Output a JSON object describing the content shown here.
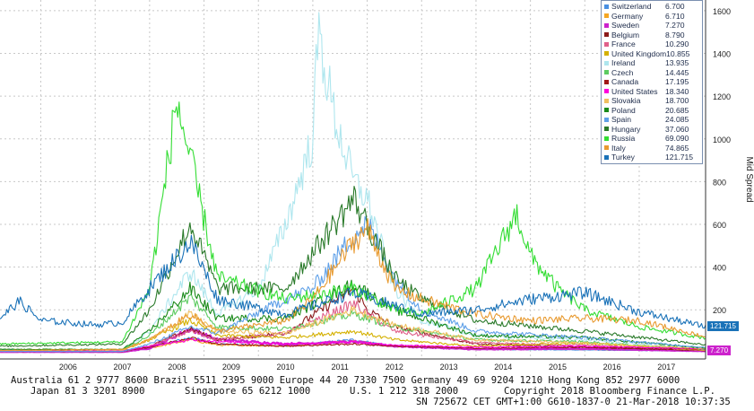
{
  "chart_data": {
    "type": "line",
    "ylabel": "Mid Spread",
    "ylim": [
      -30,
      1650
    ],
    "yticks": [
      200,
      400,
      600,
      800,
      1000,
      1200,
      1400,
      1600
    ],
    "x_years": [
      "2006",
      "2007",
      "2008",
      "2009",
      "2010",
      "2011",
      "2012",
      "2013",
      "2014",
      "2015",
      "2016",
      "2017"
    ],
    "x_range": [
      2005.25,
      2018.22
    ],
    "series": [
      {
        "name": "Switzerland",
        "last": "6.700",
        "color": "#4a90e2",
        "points": [
          [
            2005.25,
            12
          ],
          [
            2007.5,
            10
          ],
          [
            2008.0,
            25
          ],
          [
            2008.75,
            70
          ],
          [
            2009.25,
            40
          ],
          [
            2010.5,
            30
          ],
          [
            2011.75,
            60
          ],
          [
            2012.5,
            30
          ],
          [
            2014,
            15
          ],
          [
            2016,
            12
          ],
          [
            2018.2,
            7
          ]
        ]
      },
      {
        "name": "Germany",
        "last": "6.710",
        "color": "#f5a623",
        "points": [
          [
            2005.25,
            8
          ],
          [
            2007.5,
            7
          ],
          [
            2008.0,
            20
          ],
          [
            2008.75,
            60
          ],
          [
            2009.25,
            35
          ],
          [
            2010.5,
            30
          ],
          [
            2011.75,
            55
          ],
          [
            2012.5,
            30
          ],
          [
            2014,
            18
          ],
          [
            2016,
            15
          ],
          [
            2018.2,
            7
          ]
        ]
      },
      {
        "name": "Sweden",
        "last": "7.270",
        "color": "#cc22cc",
        "points": [
          [
            2005.25,
            3
          ],
          [
            2007.5,
            3
          ],
          [
            2008.0,
            20
          ],
          [
            2008.75,
            110
          ],
          [
            2009.25,
            60
          ],
          [
            2010.5,
            40
          ],
          [
            2011.75,
            50
          ],
          [
            2012.5,
            30
          ],
          [
            2014,
            15
          ],
          [
            2016,
            18
          ],
          [
            2018.2,
            7
          ]
        ]
      },
      {
        "name": "Belgium",
        "last": "8.790",
        "color": "#8b1a1a",
        "points": [
          [
            2005.25,
            5
          ],
          [
            2007.5,
            5
          ],
          [
            2008.0,
            30
          ],
          [
            2008.75,
            110
          ],
          [
            2009.25,
            60
          ],
          [
            2010.5,
            90
          ],
          [
            2011.75,
            300
          ],
          [
            2012.0,
            200
          ],
          [
            2012.5,
            120
          ],
          [
            2014,
            40
          ],
          [
            2016,
            25
          ],
          [
            2018.2,
            9
          ]
        ]
      },
      {
        "name": "France",
        "last": "10.290",
        "color": "#e0608a",
        "points": [
          [
            2005.25,
            6
          ],
          [
            2007.5,
            6
          ],
          [
            2008.0,
            30
          ],
          [
            2008.75,
            100
          ],
          [
            2009.25,
            60
          ],
          [
            2010.5,
            90
          ],
          [
            2011.75,
            230
          ],
          [
            2012.0,
            180
          ],
          [
            2012.5,
            100
          ],
          [
            2014,
            45
          ],
          [
            2016,
            35
          ],
          [
            2018.2,
            10
          ]
        ]
      },
      {
        "name": "United Kingdom",
        "last": "10.855",
        "color": "#d4b000",
        "points": [
          [
            2005.25,
            6
          ],
          [
            2007.5,
            10
          ],
          [
            2008.0,
            60
          ],
          [
            2008.75,
            150
          ],
          [
            2009.25,
            80
          ],
          [
            2010.5,
            70
          ],
          [
            2011.75,
            100
          ],
          [
            2012.5,
            60
          ],
          [
            2014,
            30
          ],
          [
            2016,
            45
          ],
          [
            2018.2,
            11
          ]
        ]
      },
      {
        "name": "Ireland",
        "last": "13.935",
        "color": "#aee6ee",
        "points": [
          [
            2005.25,
            5
          ],
          [
            2007.5,
            10
          ],
          [
            2008.0,
            100
          ],
          [
            2008.75,
            380
          ],
          [
            2009.25,
            180
          ],
          [
            2010.0,
            300
          ],
          [
            2010.5,
            600
          ],
          [
            2011.0,
            1000
          ],
          [
            2011.1,
            1500
          ],
          [
            2011.4,
            1100
          ],
          [
            2011.75,
            800
          ],
          [
            2012.0,
            720
          ],
          [
            2012.5,
            300
          ],
          [
            2013,
            150
          ],
          [
            2014,
            80
          ],
          [
            2016,
            60
          ],
          [
            2018.2,
            14
          ]
        ]
      },
      {
        "name": "Czech",
        "last": "14.445",
        "color": "#5ccb60",
        "points": [
          [
            2005.25,
            10
          ],
          [
            2007.5,
            12
          ],
          [
            2008.0,
            80
          ],
          [
            2008.75,
            260
          ],
          [
            2009.25,
            120
          ],
          [
            2010.5,
            110
          ],
          [
            2011.75,
            180
          ],
          [
            2012.5,
            120
          ],
          [
            2014,
            60
          ],
          [
            2016,
            50
          ],
          [
            2018.2,
            14
          ]
        ]
      },
      {
        "name": "Canada",
        "last": "17.195",
        "color": "#a01818",
        "points": [
          [
            2005.25,
            8
          ],
          [
            2007.5,
            8
          ],
          [
            2008.0,
            25
          ],
          [
            2008.75,
            70
          ],
          [
            2009.25,
            40
          ],
          [
            2010.5,
            30
          ],
          [
            2011.75,
            40
          ],
          [
            2012.5,
            30
          ],
          [
            2014,
            20
          ],
          [
            2016,
            25
          ],
          [
            2018.2,
            17
          ]
        ]
      },
      {
        "name": "United States",
        "last": "18.340",
        "color": "#ff00dd",
        "points": [
          [
            2005.25,
            5
          ],
          [
            2007.5,
            8
          ],
          [
            2008.0,
            30
          ],
          [
            2008.75,
            60
          ],
          [
            2009.25,
            50
          ],
          [
            2010.5,
            40
          ],
          [
            2011.75,
            50
          ],
          [
            2012.5,
            35
          ],
          [
            2014,
            25
          ],
          [
            2016,
            30
          ],
          [
            2018.2,
            18
          ]
        ]
      },
      {
        "name": "Slovakia",
        "last": "18.700",
        "color": "#f0c060",
        "points": [
          [
            2005.25,
            10
          ],
          [
            2007.5,
            12
          ],
          [
            2008.0,
            60
          ],
          [
            2008.75,
            180
          ],
          [
            2009.25,
            100
          ],
          [
            2010.5,
            90
          ],
          [
            2011.75,
            200
          ],
          [
            2012.5,
            130
          ],
          [
            2014,
            60
          ],
          [
            2016,
            45
          ],
          [
            2018.2,
            19
          ]
        ]
      },
      {
        "name": "Poland",
        "last": "20.685",
        "color": "#1a8a1a",
        "points": [
          [
            2005.25,
            15
          ],
          [
            2007.5,
            15
          ],
          [
            2008.0,
            100
          ],
          [
            2008.75,
            300
          ],
          [
            2009.25,
            160
          ],
          [
            2010.5,
            160
          ],
          [
            2011.75,
            320
          ],
          [
            2012.5,
            200
          ],
          [
            2014,
            80
          ],
          [
            2016,
            70
          ],
          [
            2018.2,
            21
          ]
        ]
      },
      {
        "name": "Spain",
        "last": "24.085",
        "color": "#5fa0e8",
        "points": [
          [
            2005.25,
            5
          ],
          [
            2007.5,
            5
          ],
          [
            2008.0,
            40
          ],
          [
            2008.75,
            120
          ],
          [
            2009.25,
            90
          ],
          [
            2010.5,
            250
          ],
          [
            2011.0,
            300
          ],
          [
            2011.75,
            550
          ],
          [
            2012.0,
            600
          ],
          [
            2012.5,
            350
          ],
          [
            2013,
            200
          ],
          [
            2014,
            100
          ],
          [
            2016,
            70
          ],
          [
            2018.2,
            24
          ]
        ]
      },
      {
        "name": "Hungary",
        "last": "37.060",
        "color": "#2a7a2a",
        "points": [
          [
            2005.25,
            30
          ],
          [
            2007.5,
            40
          ],
          [
            2008.0,
            200
          ],
          [
            2008.75,
            600
          ],
          [
            2009.25,
            300
          ],
          [
            2010.5,
            300
          ],
          [
            2011.75,
            720
          ],
          [
            2012.0,
            600
          ],
          [
            2012.5,
            350
          ],
          [
            2013,
            250
          ],
          [
            2014,
            150
          ],
          [
            2016,
            100
          ],
          [
            2018.2,
            37
          ]
        ]
      },
      {
        "name": "Russia",
        "last": "69.090",
        "color": "#33dd33",
        "points": [
          [
            2005.25,
            40
          ],
          [
            2007.5,
            50
          ],
          [
            2008.0,
            300
          ],
          [
            2008.5,
            1180
          ],
          [
            2008.75,
            900
          ],
          [
            2009.25,
            350
          ],
          [
            2010.5,
            250
          ],
          [
            2011.75,
            300
          ],
          [
            2012.5,
            200
          ],
          [
            2013,
            180
          ],
          [
            2014,
            300
          ],
          [
            2014.75,
            650
          ],
          [
            2015.0,
            450
          ],
          [
            2015.5,
            300
          ],
          [
            2016,
            200
          ],
          [
            2017,
            120
          ],
          [
            2018.2,
            69
          ]
        ]
      },
      {
        "name": "Italy",
        "last": "74.865",
        "color": "#e89a30",
        "points": [
          [
            2005.25,
            10
          ],
          [
            2007.5,
            15
          ],
          [
            2008.0,
            60
          ],
          [
            2008.75,
            180
          ],
          [
            2009.25,
            100
          ],
          [
            2010.5,
            150
          ],
          [
            2011.0,
            250
          ],
          [
            2011.75,
            520
          ],
          [
            2012.0,
            580
          ],
          [
            2012.5,
            300
          ],
          [
            2013,
            250
          ],
          [
            2014,
            180
          ],
          [
            2015,
            150
          ],
          [
            2016,
            160
          ],
          [
            2017,
            150
          ],
          [
            2018.2,
            75
          ]
        ]
      },
      {
        "name": "Turkey",
        "last": "121.715",
        "color": "#1a72b8",
        "points": [
          [
            2005.25,
            160
          ],
          [
            2005.6,
            240
          ],
          [
            2006.0,
            150
          ],
          [
            2007.0,
            130
          ],
          [
            2007.5,
            140
          ],
          [
            2008.0,
            300
          ],
          [
            2008.75,
            520
          ],
          [
            2009.25,
            250
          ],
          [
            2010.5,
            180
          ],
          [
            2011.75,
            280
          ],
          [
            2012.5,
            220
          ],
          [
            2013,
            180
          ],
          [
            2014,
            200
          ],
          [
            2015,
            250
          ],
          [
            2016,
            280
          ],
          [
            2017,
            190
          ],
          [
            2018.2,
            122
          ]
        ]
      }
    ]
  },
  "right_tags": [
    {
      "label": "121.715",
      "color": "#1a72b8",
      "value": 122
    },
    {
      "label": "7.270",
      "color": "#cc22cc",
      "value": 7
    }
  ],
  "footer": {
    "line1": "Australia 61 2 9777 8600 Brazil 5511 2395 9000 Europe 44 20 7330 7500 Germany 49 69 9204 1210 Hong Kong 852 2977 6000",
    "line2a": "Japan 81 3 3201 8900",
    "line2b": "Singapore 65 6212 1000",
    "line2c": "U.S. 1 212 318 2000",
    "line2d": "Copyright 2018 Bloomberg Finance L.P.",
    "line3": "SN 725672 CET  GMT+1:00 G610-1837-0 21-Mar-2018 10:37:35"
  }
}
